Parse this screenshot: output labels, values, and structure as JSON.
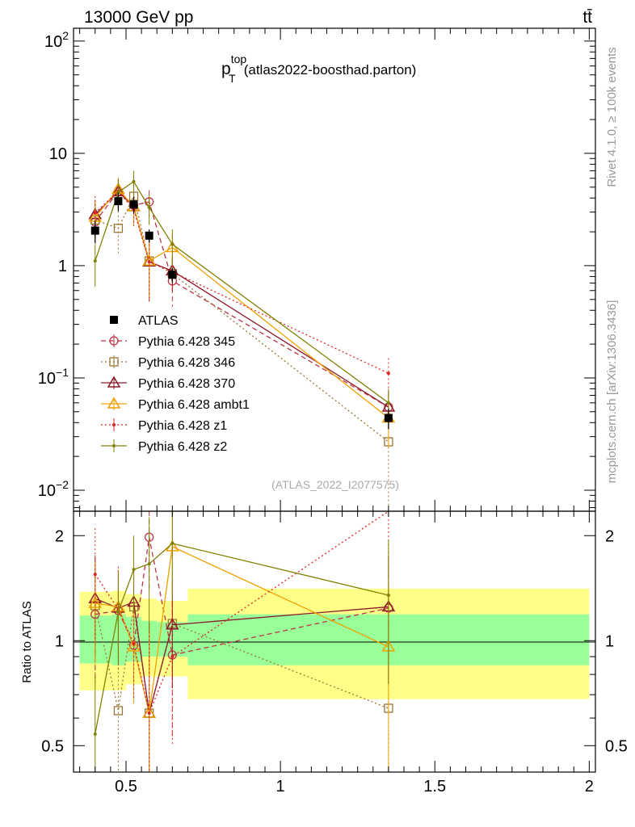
{
  "header": {
    "energy_label": "13000 GeV pp",
    "process_label": "tt̄",
    "rivet_label": "Rivet 4.1.0, ≥ 100k events",
    "mcplots_label": "mcplots.cern.ch [arXiv:1306.3436]"
  },
  "chart_data": {
    "type": "line",
    "title_main": "p",
    "title_sub": "T",
    "title_sup": "top",
    "title_rest": "(atlas2022-boosthad.parton)",
    "watermark": "(ATLAS_2022_I2077575)",
    "xlim": [
      0.33,
      2.02
    ],
    "x_ticks": [
      0.5,
      1,
      1.5,
      2
    ],
    "x_tick_labels": [
      "0.5",
      "1",
      "1.5",
      "2"
    ],
    "main": {
      "yscale": "log",
      "ylim": [
        0.0065,
        130
      ],
      "y_ticks": [
        0.01,
        0.1,
        1,
        10,
        100
      ],
      "y_tick_labels": [
        {
          "base": "10",
          "exp": "−2"
        },
        {
          "base": "10",
          "exp": "−1"
        },
        {
          "base": "1",
          "exp": ""
        },
        {
          "base": "10",
          "exp": ""
        },
        {
          "base": "10",
          "exp": "2"
        }
      ]
    },
    "ratio": {
      "ylabel": "Ratio to ATLAS",
      "ylim": [
        0.42,
        2.35
      ],
      "y_ticks": [
        0.5,
        1,
        2
      ],
      "y_tick_labels": [
        "0.5",
        "1",
        "2"
      ],
      "bands": [
        {
          "x0": 0.35,
          "x1": 0.455,
          "green": [
            0.86,
            1.18
          ],
          "yellow": [
            0.72,
            1.38
          ]
        },
        {
          "x0": 0.455,
          "x1": 0.5,
          "green": [
            0.85,
            1.19
          ],
          "yellow": [
            0.72,
            1.39
          ]
        },
        {
          "x0": 0.5,
          "x1": 0.55,
          "green": [
            0.87,
            1.17
          ],
          "yellow": [
            0.75,
            1.36
          ]
        },
        {
          "x0": 0.55,
          "x1": 0.6,
          "green": [
            0.9,
            1.14
          ],
          "yellow": [
            0.79,
            1.32
          ]
        },
        {
          "x0": 0.6,
          "x1": 0.7,
          "green": [
            0.9,
            1.13
          ],
          "yellow": [
            0.79,
            1.3
          ]
        },
        {
          "x0": 0.7,
          "x1": 2.0,
          "green": [
            0.85,
            1.19
          ],
          "yellow": [
            0.68,
            1.41
          ]
        }
      ]
    },
    "data": {
      "name": "ATLAS",
      "x": [
        0.4,
        0.475,
        0.525,
        0.575,
        0.65,
        1.35
      ],
      "xerr": [
        0.007,
        0.007,
        0.007,
        0.007,
        0.007,
        0.007
      ],
      "y": [
        2.05,
        3.75,
        3.5,
        1.85,
        0.83,
        0.044
      ],
      "yerr": [
        0.45,
        0.7,
        0.6,
        0.25,
        0.12,
        0.009
      ]
    },
    "series": [
      {
        "name": "Pythia 6.428 345",
        "color": "#bb3344",
        "dash": "6,4",
        "marker": "circle",
        "y": [
          2.45,
          4.6,
          3.45,
          3.7,
          0.73,
          0.055
        ],
        "yerr": [
          0.9,
          1.3,
          1.0,
          1.0,
          0.3,
          0.02
        ],
        "ratio": [
          1.19,
          1.22,
          0.97,
          1.98,
          0.91,
          1.24
        ],
        "ratio_err": [
          0.42,
          0.3,
          0.3,
          0.6,
          0.38,
          0.5
        ]
      },
      {
        "name": "Pythia 6.428 346",
        "color": "#997733",
        "dash": "2,3",
        "marker": "square",
        "y": [
          2.55,
          2.15,
          4.15,
          1.1,
          0.85,
          0.027
        ],
        "yerr": [
          1.0,
          0.9,
          1.1,
          0.6,
          0.3,
          0.02
        ],
        "ratio": [
          1.26,
          0.63,
          1.25,
          0.62,
          1.12,
          0.64
        ],
        "ratio_err": [
          0.5,
          0.3,
          0.35,
          0.35,
          0.4,
          0.5
        ]
      },
      {
        "name": "Pythia 6.428 370",
        "color": "#8b1a2a",
        "dash": "",
        "marker": "triangle-open",
        "y": [
          2.85,
          4.55,
          3.35,
          1.08,
          0.9,
          0.055
        ],
        "yerr": [
          1.0,
          1.3,
          1.0,
          0.6,
          0.3,
          0.02
        ],
        "ratio": [
          1.32,
          1.24,
          1.29,
          0.62,
          1.11,
          1.25
        ],
        "ratio_err": [
          0.42,
          0.35,
          0.3,
          0.5,
          0.38,
          0.5
        ]
      },
      {
        "name": "Pythia 6.428 ambt1",
        "color": "#f0a000",
        "dash": "",
        "marker": "triangle-open",
        "y": [
          2.7,
          4.8,
          3.35,
          1.1,
          1.45,
          0.044
        ],
        "yerr": [
          1.0,
          1.3,
          1.0,
          0.6,
          0.5,
          0.02
        ],
        "ratio": [
          1.28,
          1.25,
          0.96,
          0.62,
          1.86,
          0.96
        ],
        "ratio_err": [
          0.42,
          0.35,
          0.3,
          0.5,
          0.5,
          0.55
        ]
      },
      {
        "name": "Pythia 6.428 z1",
        "color": "#dd2222",
        "dash": "2,3",
        "marker": "dot",
        "y": [
          2.95,
          4.6,
          3.15,
          1.08,
          0.88,
          0.11
        ],
        "yerr": [
          1.2,
          1.3,
          1.0,
          0.6,
          0.3,
          0.04
        ],
        "ratio": [
          1.55,
          1.23,
          0.98,
          0.62,
          0.9,
          2.4
        ],
        "ratio_err": [
          0.55,
          0.4,
          0.3,
          0.5,
          0.4,
          0.9
        ]
      },
      {
        "name": "Pythia 6.428 z2",
        "color": "#808000",
        "dash": "",
        "marker": "dot",
        "y": [
          1.1,
          4.5,
          5.6,
          3.3,
          1.55,
          0.06
        ],
        "yerr": [
          0.45,
          1.3,
          1.4,
          1.0,
          0.55,
          0.02
        ],
        "ratio": [
          0.54,
          1.21,
          1.6,
          1.66,
          1.9,
          1.35
        ],
        "ratio_err": [
          0.25,
          0.35,
          0.4,
          0.6,
          0.6,
          0.6
        ]
      }
    ]
  }
}
